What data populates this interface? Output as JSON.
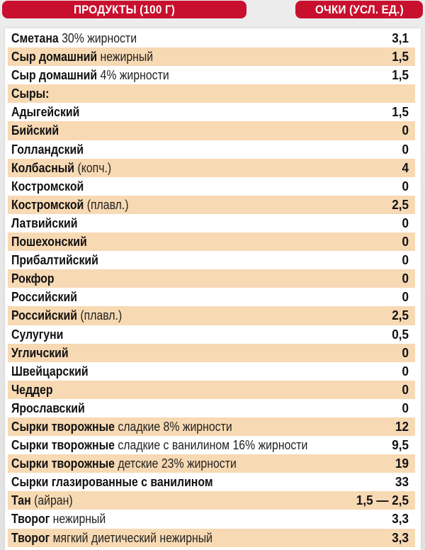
{
  "header": {
    "col_product": "ПРОДУКТЫ (100 Г)",
    "col_points": "ОЧКИ (УСЛ. ЕД.)"
  },
  "colors": {
    "header_red": "#c8102e",
    "row_shade": "#f7d9b3",
    "panel_bg": "#ffffff",
    "page_bg": "#e6e6e6"
  },
  "rows": [
    {
      "bold": "Сметана",
      "desc": " 30% жирности",
      "value": "3,1",
      "shaded": false
    },
    {
      "bold": "Сыр домашний",
      "desc": " нежирный",
      "value": "1,5",
      "shaded": true
    },
    {
      "bold": "Сыр домашний",
      "desc": " 4% жирности",
      "value": "1,5",
      "shaded": false
    },
    {
      "bold": "Сыры:",
      "desc": "",
      "value": "",
      "shaded": true
    },
    {
      "bold": "Адыгейский",
      "desc": "",
      "value": "1,5",
      "shaded": false
    },
    {
      "bold": "Бийский",
      "desc": "",
      "value": "0",
      "shaded": true
    },
    {
      "bold": "Голландский",
      "desc": "",
      "value": "0",
      "shaded": false
    },
    {
      "bold": "Колбасный",
      "desc": " (копч.)",
      "value": "4",
      "shaded": true
    },
    {
      "bold": "Костромской",
      "desc": "",
      "value": "0",
      "shaded": false
    },
    {
      "bold": "Костромской",
      "desc": " (плавл.)",
      "value": "2,5",
      "shaded": true
    },
    {
      "bold": "Латвийский",
      "desc": "",
      "value": "0",
      "shaded": false
    },
    {
      "bold": "Пошехонский",
      "desc": "",
      "value": "0",
      "shaded": true
    },
    {
      "bold": "Прибалтийский",
      "desc": "",
      "value": "0",
      "shaded": false
    },
    {
      "bold": "Рокфор",
      "desc": "",
      "value": "0",
      "shaded": true
    },
    {
      "bold": "Российский",
      "desc": "",
      "value": "0",
      "shaded": false
    },
    {
      "bold": "Российский",
      "desc": " (плавл.)",
      "value": "2,5",
      "shaded": true
    },
    {
      "bold": "Сулугуни",
      "desc": "",
      "value": "0,5",
      "shaded": false
    },
    {
      "bold": "Угличский",
      "desc": "",
      "value": "0",
      "shaded": true
    },
    {
      "bold": "Швейцарский",
      "desc": "",
      "value": "0",
      "shaded": false
    },
    {
      "bold": "Чеддер",
      "desc": "",
      "value": "0",
      "shaded": true
    },
    {
      "bold": "Ярославский",
      "desc": "",
      "value": "0",
      "shaded": false
    },
    {
      "bold": "Сырки творожные",
      "desc": " сладкие 8% жирности",
      "value": "12",
      "shaded": true
    },
    {
      "bold": "Сырки творожные",
      "desc": " сладкие с ванилином 16% жирности",
      "value": "9,5",
      "shaded": false
    },
    {
      "bold": "Сырки творожные",
      "desc": " детские 23% жирности",
      "value": "19",
      "shaded": true
    },
    {
      "bold": "Сырки глазированные с ванилином",
      "desc": "",
      "value": "33",
      "shaded": false
    },
    {
      "bold": "Тан",
      "desc": " (айран)",
      "value": "1,5 — 2,5",
      "shaded": true
    },
    {
      "bold": "Творог",
      "desc": " нежирный",
      "value": "3,3",
      "shaded": false
    },
    {
      "bold": "Творог",
      "desc": " мягкий диетический нежирный",
      "value": "3,3",
      "shaded": true
    }
  ]
}
